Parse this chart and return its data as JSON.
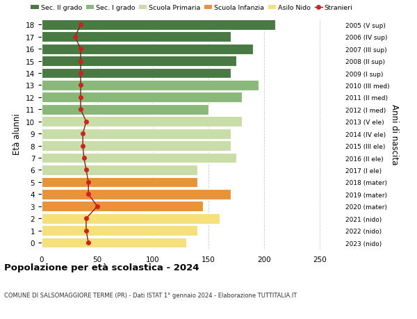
{
  "ages": [
    0,
    1,
    2,
    3,
    4,
    5,
    6,
    7,
    8,
    9,
    10,
    11,
    12,
    13,
    14,
    15,
    16,
    17,
    18
  ],
  "bar_values": [
    130,
    140,
    160,
    145,
    170,
    140,
    140,
    175,
    170,
    170,
    180,
    150,
    180,
    195,
    170,
    175,
    190,
    170,
    210
  ],
  "stranieri": [
    42,
    40,
    40,
    50,
    42,
    42,
    40,
    38,
    37,
    37,
    40,
    35,
    35,
    35,
    35,
    35,
    35,
    30,
    35
  ],
  "bar_colors": [
    "#f5e07a",
    "#f5e07a",
    "#f5e07a",
    "#e8933a",
    "#e8933a",
    "#e8933a",
    "#c8dda8",
    "#c8dda8",
    "#c8dda8",
    "#c8dda8",
    "#c8dda8",
    "#8ab87a",
    "#8ab87a",
    "#8ab87a",
    "#4a7a44",
    "#4a7a44",
    "#4a7a44",
    "#4a7a44",
    "#4a7a44"
  ],
  "right_labels": [
    "2023 (nido)",
    "2022 (nido)",
    "2021 (nido)",
    "2020 (mater)",
    "2019 (mater)",
    "2018 (mater)",
    "2017 (I ele)",
    "2016 (II ele)",
    "2015 (III ele)",
    "2014 (IV ele)",
    "2013 (V ele)",
    "2012 (I med)",
    "2011 (II med)",
    "2010 (III med)",
    "2009 (I sup)",
    "2008 (II sup)",
    "2007 (III sup)",
    "2006 (IV sup)",
    "2005 (V sup)"
  ],
  "legend_labels": [
    "Sec. II grado",
    "Sec. I grado",
    "Scuola Primaria",
    "Scuola Infanzia",
    "Asilo Nido",
    "Stranieri"
  ],
  "legend_colors": [
    "#4a7a44",
    "#8ab87a",
    "#c8dda8",
    "#e8933a",
    "#f5e07a",
    "#cc2222"
  ],
  "ylabel": "Età alunni",
  "right_ylabel": "Anni di nascita",
  "title": "Popolazione per età scolastica - 2024",
  "subtitle": "COMUNE DI SALSOMAGGIORE TERME (PR) - Dati ISTAT 1° gennaio 2024 - Elaborazione TUTTITALIA.IT",
  "xlim": [
    0,
    270
  ],
  "xticks": [
    0,
    50,
    100,
    150,
    200,
    250
  ],
  "background_color": "#ffffff",
  "bar_height": 0.85,
  "stranieri_color": "#cc2222",
  "stranieri_line_color": "#8b1a1a",
  "grid_color": "#cccccc"
}
